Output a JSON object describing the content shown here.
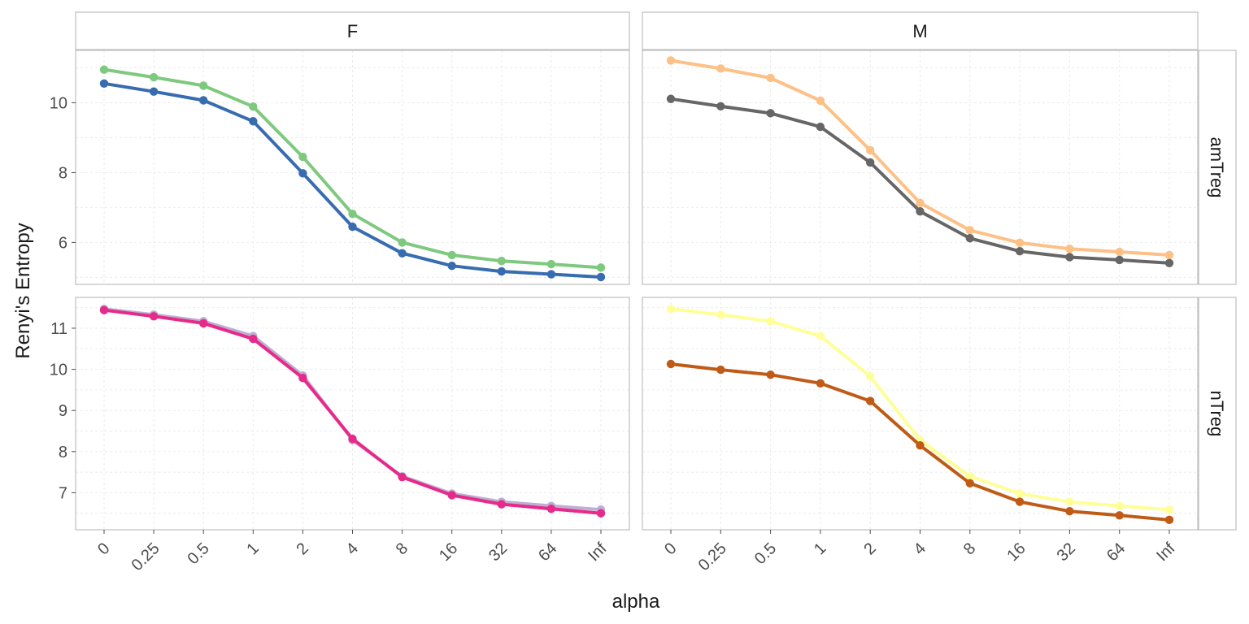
{
  "chart_data": {
    "type": "line",
    "facet_cols": [
      "F",
      "M"
    ],
    "facet_rows": [
      "amTreg",
      "nTreg"
    ],
    "xlabel": "alpha",
    "ylabel": "Renyi's Entropy",
    "categories": [
      "0",
      "0.25",
      "0.5",
      "1",
      "2",
      "4",
      "8",
      "16",
      "32",
      "64",
      "Inf"
    ],
    "grid": true,
    "legend": "none",
    "rows": [
      {
        "row": "amTreg",
        "yticks": [
          6,
          8,
          10
        ],
        "ylim": [
          4.8,
          11.5
        ],
        "panels": [
          {
            "col": "F",
            "series": [
              {
                "color": "#7fc97f",
                "values": [
                  10.95,
                  10.73,
                  10.49,
                  9.89,
                  8.45,
                  6.82,
                  6.0,
                  5.64,
                  5.47,
                  5.38,
                  5.28
                ]
              },
              {
                "color": "#386cb0",
                "values": [
                  10.55,
                  10.32,
                  10.07,
                  9.47,
                  7.98,
                  6.45,
                  5.69,
                  5.33,
                  5.17,
                  5.09,
                  5.01
                ]
              }
            ]
          },
          {
            "col": "M",
            "series": [
              {
                "color": "#fdc086",
                "values": [
                  11.21,
                  10.98,
                  10.71,
                  10.06,
                  8.64,
                  7.13,
                  6.35,
                  5.99,
                  5.82,
                  5.73,
                  5.64
                ]
              },
              {
                "color": "#666666",
                "values": [
                  10.11,
                  9.9,
                  9.7,
                  9.31,
                  8.29,
                  6.89,
                  6.12,
                  5.75,
                  5.58,
                  5.5,
                  5.41
                ]
              }
            ]
          }
        ]
      },
      {
        "row": "nTreg",
        "yticks": [
          7,
          8,
          9,
          10,
          11
        ],
        "ylim": [
          6.1,
          11.75
        ],
        "panels": [
          {
            "col": "F",
            "series": [
              {
                "color": "#beaed4",
                "values": [
                  11.47,
                  11.33,
                  11.17,
                  10.81,
                  9.85,
                  8.28,
                  7.4,
                  6.98,
                  6.78,
                  6.68,
                  6.59
                ]
              },
              {
                "color": "#e7298a",
                "values": [
                  11.44,
                  11.29,
                  11.12,
                  10.74,
                  9.79,
                  8.31,
                  7.38,
                  6.94,
                  6.72,
                  6.61,
                  6.5
                ]
              }
            ]
          },
          {
            "col": "M",
            "series": [
              {
                "color": "#ffff99",
                "values": [
                  11.47,
                  11.33,
                  11.17,
                  10.81,
                  9.83,
                  8.28,
                  7.4,
                  6.98,
                  6.78,
                  6.68,
                  6.59
                ]
              },
              {
                "color": "#bf5b17",
                "values": [
                  10.13,
                  9.99,
                  9.87,
                  9.66,
                  9.23,
                  8.15,
                  7.23,
                  6.78,
                  6.55,
                  6.45,
                  6.34
                ]
              }
            ]
          }
        ]
      }
    ]
  }
}
